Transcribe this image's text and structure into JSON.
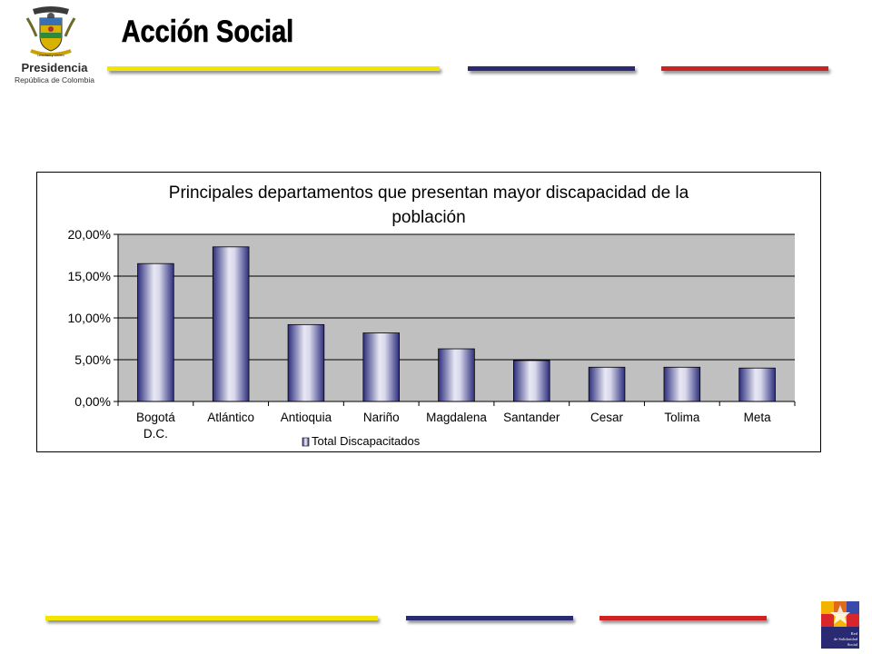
{
  "header": {
    "brand_text": "Acción Social",
    "presidencia": "Presidencia",
    "republica": "República de Colombia",
    "seal_motto": "Libertad y Orden"
  },
  "colors": {
    "yellow": "#f2e600",
    "navy": "#2a2a72",
    "red": "#cc2222",
    "plot_bg": "#c0c0c0",
    "bar_dark": "#2e2e7e",
    "bar_light": "#f0f0f8"
  },
  "footer": {
    "logo_text": "Red de Solidaridad Social"
  },
  "chart_data": {
    "type": "bar",
    "title": "Principales departamentos que presentan mayor discapacidad de la población",
    "categories": [
      "Bogotá D.C.",
      "Atlántico",
      "Antioquia",
      "Nariño",
      "Magdalena",
      "Santander",
      "Cesar",
      "Tolima",
      "Meta"
    ],
    "series": [
      {
        "name": "Total Discapacitados",
        "values": [
          16.5,
          18.5,
          9.2,
          8.2,
          6.3,
          4.9,
          4.1,
          4.1,
          4.0
        ]
      }
    ],
    "yticks": [
      "0,00%",
      "5,00%",
      "10,00%",
      "15,00%",
      "20,00%"
    ],
    "ylim": [
      0,
      20
    ],
    "grid": true,
    "legend": "bottom"
  }
}
